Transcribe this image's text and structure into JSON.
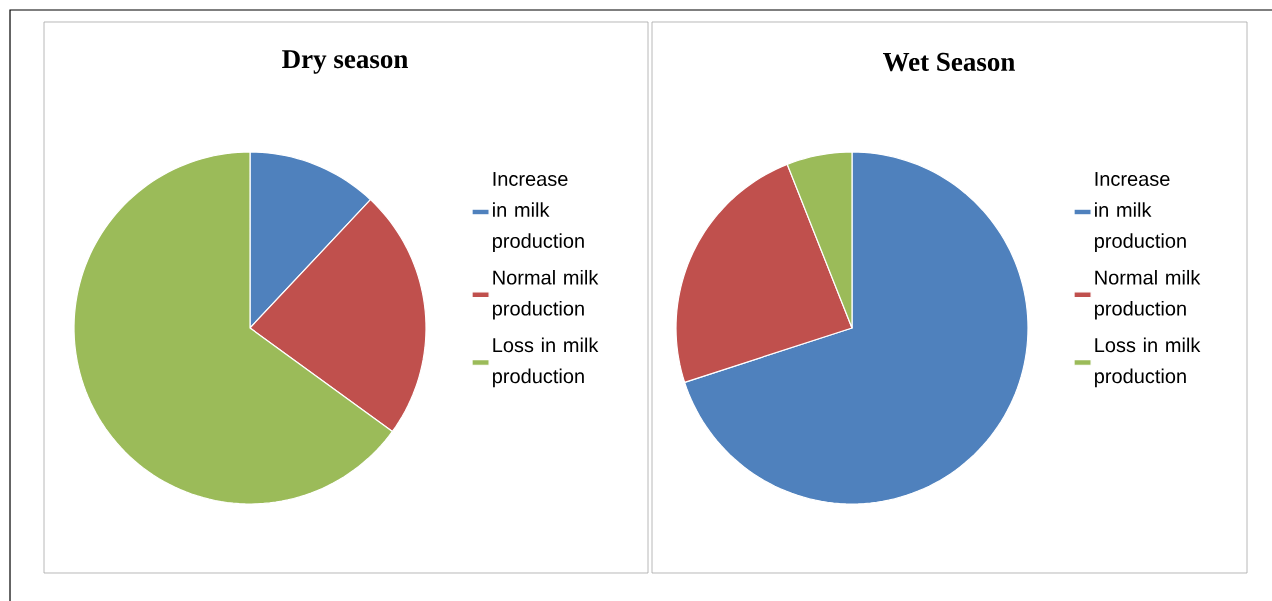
{
  "chart_data": [
    {
      "type": "pie",
      "title": "Dry season",
      "categories": [
        "Increase in milk production",
        "Normal milk production",
        "Loss in milk production"
      ],
      "values": [
        12,
        23,
        65
      ],
      "colors": [
        "#4f81bd",
        "#c0504d",
        "#9bbb59"
      ],
      "legend": "right"
    },
    {
      "type": "pie",
      "title": "Wet Season",
      "categories": [
        "Increase in milk production",
        "Normal milk production",
        "Loss in milk production"
      ],
      "values": [
        70,
        24,
        6
      ],
      "colors": [
        "#4f81bd",
        "#c0504d",
        "#9bbb59"
      ],
      "legend": "right"
    }
  ]
}
